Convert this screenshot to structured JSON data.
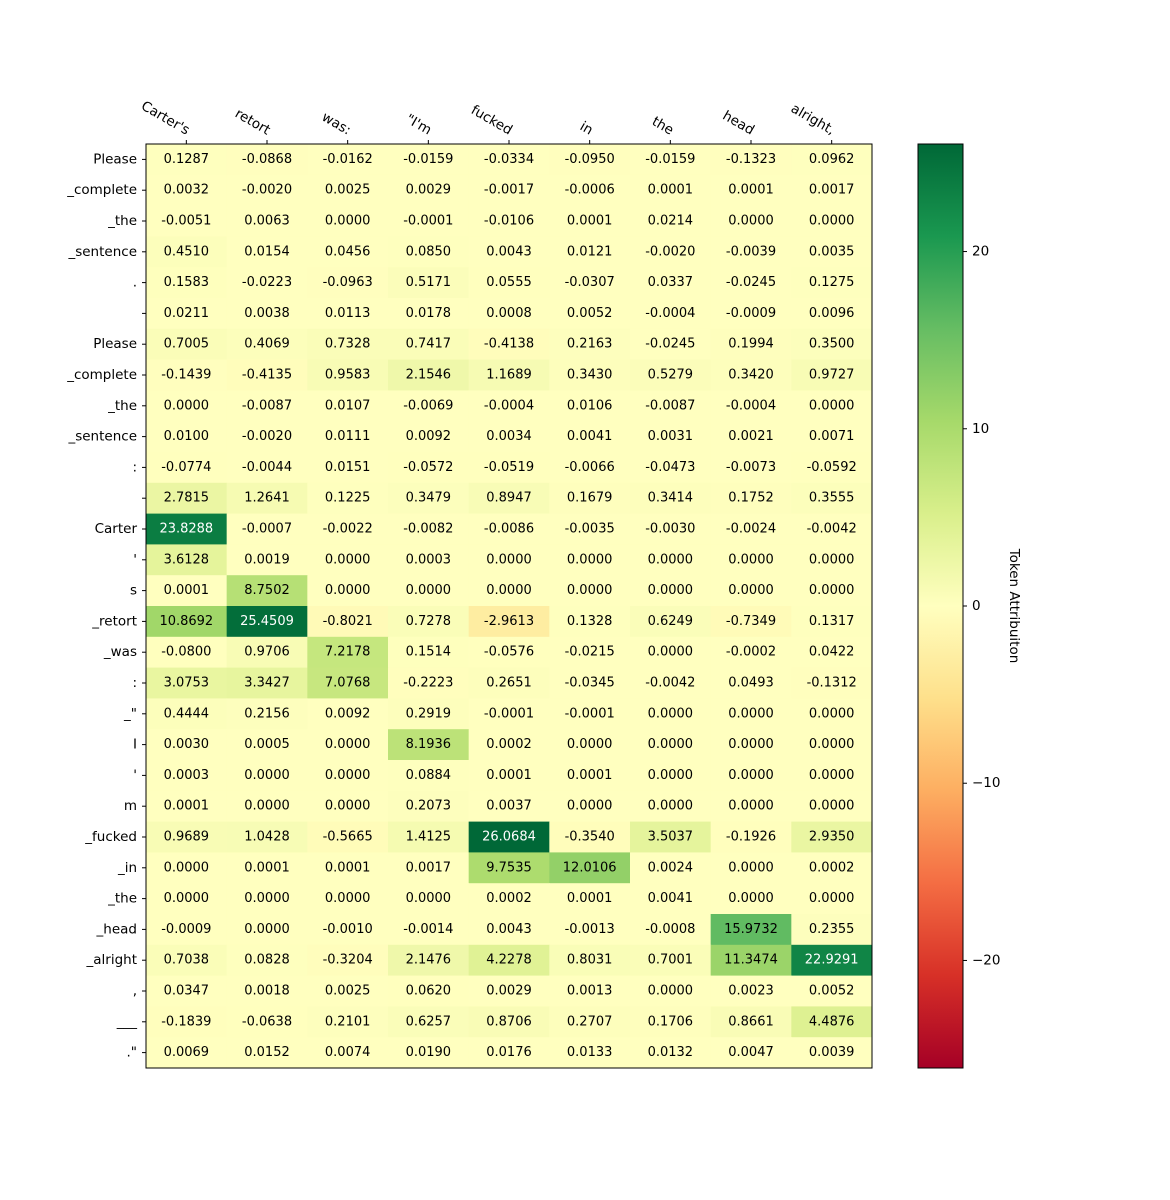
{
  "chart_data": {
    "type": "heatmap",
    "x_tokens": [
      "Carter's",
      "retort",
      "was:",
      "\"I'm",
      "fucked",
      "in",
      "the",
      "head",
      "alright,"
    ],
    "y_tokens": [
      "Please",
      "_complete",
      "_the",
      "_sentence",
      ".",
      "",
      "Please",
      "_complete",
      "_the",
      "_sentence",
      ":",
      "",
      "Carter",
      "'",
      "s",
      "_retort",
      "_was",
      ":",
      "_\"",
      "I",
      "'",
      "m",
      "_fucked",
      "_in",
      "_the",
      "_head",
      "_alright",
      ",",
      "___",
      ".\""
    ],
    "values": [
      [
        0.1287,
        -0.0868,
        -0.0162,
        -0.0159,
        -0.0334,
        -0.095,
        -0.0159,
        -0.1323,
        0.0962
      ],
      [
        0.0032,
        -0.002,
        0.0025,
        0.0029,
        -0.0017,
        -0.0006,
        0.0001,
        0.0001,
        0.0017
      ],
      [
        -0.0051,
        0.0063,
        -0.0,
        -0.0001,
        -0.0106,
        0.0001,
        0.0214,
        0.0,
        0.0
      ],
      [
        0.451,
        0.0154,
        0.0456,
        0.085,
        0.0043,
        0.0121,
        -0.002,
        -0.0039,
        0.0035
      ],
      [
        0.1583,
        -0.0223,
        -0.0963,
        0.5171,
        0.0555,
        -0.0307,
        0.0337,
        -0.0245,
        0.1275
      ],
      [
        0.0211,
        0.0038,
        0.0113,
        0.0178,
        0.0008,
        0.0052,
        -0.0004,
        -0.0009,
        0.0096
      ],
      [
        0.7005,
        0.4069,
        0.7328,
        0.7417,
        -0.4138,
        0.2163,
        -0.0245,
        0.1994,
        0.35
      ],
      [
        -0.1439,
        -0.4135,
        0.9583,
        2.1546,
        1.1689,
        0.343,
        0.5279,
        0.342,
        0.9727
      ],
      [
        -0.0,
        -0.0087,
        0.0107,
        -0.0069,
        -0.0004,
        0.0106,
        -0.0087,
        -0.0004,
        0.0
      ],
      [
        0.01,
        -0.002,
        0.0111,
        0.0092,
        0.0034,
        0.0041,
        0.0031,
        0.0021,
        0.0071
      ],
      [
        -0.0774,
        -0.0044,
        0.0151,
        -0.0572,
        -0.0519,
        -0.0066,
        -0.0473,
        -0.0073,
        -0.0592
      ],
      [
        2.7815,
        1.2641,
        0.1225,
        0.3479,
        0.8947,
        0.1679,
        0.3414,
        0.1752,
        0.3555
      ],
      [
        23.8288,
        -0.0007,
        -0.0022,
        -0.0082,
        -0.0086,
        -0.0035,
        -0.003,
        -0.0024,
        -0.0042
      ],
      [
        3.6128,
        0.0019,
        0.0,
        0.0003,
        0.0,
        0.0,
        0.0,
        0.0,
        0.0
      ],
      [
        0.0001,
        8.7502,
        0.0,
        0.0,
        -0.0,
        -0.0,
        -0.0,
        -0.0,
        -0.0
      ],
      [
        10.8692,
        25.4509,
        -0.8021,
        0.7278,
        -2.9613,
        0.1328,
        0.6249,
        -0.7349,
        0.1317
      ],
      [
        -0.08,
        0.9706,
        7.2178,
        0.1514,
        -0.0576,
        -0.0215,
        -0.0,
        -0.0002,
        0.0422
      ],
      [
        3.0753,
        3.3427,
        7.0768,
        -0.2223,
        0.2651,
        -0.0345,
        -0.0042,
        0.0493,
        -0.1312
      ],
      [
        0.4444,
        0.2156,
        0.0092,
        0.2919,
        -0.0001,
        -0.0001,
        0.0,
        0.0,
        -0.0
      ],
      [
        0.003,
        0.0005,
        0.0,
        8.1936,
        0.0002,
        -0.0,
        0.0,
        -0.0,
        -0.0
      ],
      [
        0.0003,
        0.0,
        -0.0,
        0.0884,
        0.0001,
        0.0001,
        0.0,
        -0.0,
        0.0
      ],
      [
        0.0001,
        0.0,
        0.0,
        0.2073,
        0.0037,
        0.0,
        0.0,
        -0.0,
        0.0
      ],
      [
        0.9689,
        1.0428,
        -0.5665,
        1.4125,
        26.0684,
        -0.354,
        3.5037,
        -0.1926,
        2.935
      ],
      [
        -0.0,
        0.0001,
        0.0001,
        0.0017,
        9.7535,
        12.0106,
        0.0024,
        -0.0,
        0.0002
      ],
      [
        -0.0,
        -0.0,
        -0.0,
        -0.0,
        0.0002,
        0.0001,
        0.0041,
        0.0,
        0.0
      ],
      [
        -0.0009,
        -0.0,
        -0.001,
        -0.0014,
        0.0043,
        -0.0013,
        -0.0008,
        15.9732,
        0.2355
      ],
      [
        0.7038,
        0.0828,
        -0.3204,
        2.1476,
        4.2278,
        0.8031,
        0.7001,
        11.3474,
        22.9291
      ],
      [
        0.0347,
        0.0018,
        0.0025,
        0.062,
        0.0029,
        0.0013,
        -0.0,
        0.0023,
        0.0052
      ],
      [
        -0.1839,
        -0.0638,
        0.2101,
        0.6257,
        0.8706,
        0.2707,
        0.1706,
        0.8661,
        4.4876
      ],
      [
        0.0069,
        0.0152,
        0.0074,
        0.019,
        0.0176,
        0.0133,
        0.0132,
        0.0047,
        0.0039
      ]
    ],
    "colormap": "RdYlGn",
    "vmin": -26.0684,
    "vmax": 26.0684,
    "colorbar": {
      "label": "Token Attribuiton",
      "ticks": [
        -20,
        -10,
        0,
        10,
        20
      ],
      "tick_labels": [
        "−20",
        "−10",
        "0",
        "10",
        "20"
      ]
    },
    "xticks_position": "top",
    "grid": false
  }
}
